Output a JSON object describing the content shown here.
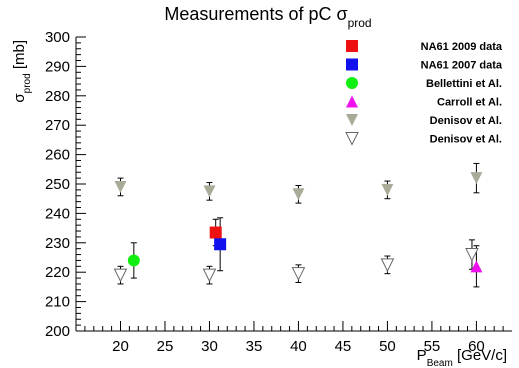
{
  "chart_data": {
    "type": "scatter",
    "title": "Measurements of pC σ",
    "title_sub": "prod",
    "xlabel_main": "P",
    "xlabel_sub": "Beam",
    "xlabel_unit": " [GeV/c]",
    "ylabel_main": "σ",
    "ylabel_sub": "prod",
    "ylabel_unit": " [mb]",
    "xlim": [
      15,
      64
    ],
    "ylim": [
      200,
      300
    ],
    "xticks": [
      20,
      25,
      30,
      35,
      40,
      45,
      50,
      55,
      60
    ],
    "yticks": [
      200,
      210,
      220,
      230,
      240,
      250,
      260,
      270,
      280,
      290,
      300
    ],
    "grid": false,
    "legend_position": "top-right",
    "series": [
      {
        "name": "NA61 2009 data",
        "marker": "square",
        "color": "#ee1111",
        "points": [
          {
            "x": 30.7,
            "y": 233.5,
            "err_low": 4.5,
            "err_high": 4.5
          }
        ]
      },
      {
        "name": "NA61 2007 data",
        "marker": "square",
        "color": "#1111ee",
        "points": [
          {
            "x": 31.2,
            "y": 229.5,
            "err_low": 9.0,
            "err_high": 9.0
          }
        ]
      },
      {
        "name": "Bellettini et Al.",
        "marker": "circle",
        "color": "#11ee11",
        "points": [
          {
            "x": 21.5,
            "y": 224.0,
            "err_low": 6.0,
            "err_high": 6.0
          }
        ]
      },
      {
        "name": "Carroll et Al.",
        "marker": "triangle-up",
        "color": "#ee11ee",
        "points": [
          {
            "x": 60.0,
            "y": 222.0,
            "err_low": 7.0,
            "err_high": 7.0
          }
        ]
      },
      {
        "name": "Denisov et Al.",
        "marker": "triangle-down",
        "color": "#aaaa99",
        "points": [
          {
            "x": 20.0,
            "y": 249.0,
            "err_low": 3.0,
            "err_high": 3.0
          },
          {
            "x": 30.0,
            "y": 247.5,
            "err_low": 3.0,
            "err_high": 3.0
          },
          {
            "x": 40.0,
            "y": 246.5,
            "err_low": 3.0,
            "err_high": 3.0
          },
          {
            "x": 50.0,
            "y": 248.0,
            "err_low": 3.0,
            "err_high": 3.0
          },
          {
            "x": 60.0,
            "y": 252.0,
            "err_low": 5.0,
            "err_high": 5.0
          }
        ]
      },
      {
        "name": "Denisov et Al.",
        "marker": "triangle-down-open",
        "color": "#666666",
        "points": [
          {
            "x": 20.0,
            "y": 219.0,
            "err_low": 3.0,
            "err_high": 3.0
          },
          {
            "x": 30.0,
            "y": 219.0,
            "err_low": 3.0,
            "err_high": 3.0
          },
          {
            "x": 40.0,
            "y": 219.5,
            "err_low": 3.0,
            "err_high": 3.0
          },
          {
            "x": 50.0,
            "y": 222.5,
            "err_low": 3.0,
            "err_high": 3.0
          },
          {
            "x": 59.5,
            "y": 226.0,
            "err_low": 5.0,
            "err_high": 5.0
          }
        ]
      }
    ]
  }
}
